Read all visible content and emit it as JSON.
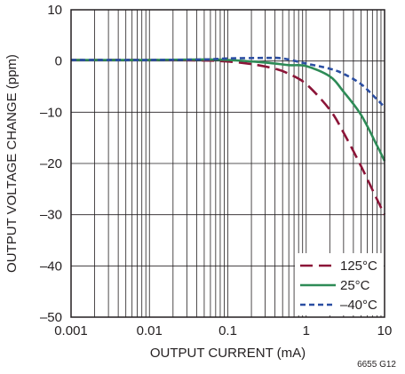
{
  "chart_data": {
    "type": "line",
    "title": "",
    "xlabel": "OUTPUT CURRENT (mA)",
    "ylabel": "OUTPUT VOLTAGE CHANGE (ppm)",
    "x_scale": "log",
    "xlim": [
      0.001,
      10
    ],
    "ylim": [
      -50,
      10
    ],
    "x_ticks": [
      0.001,
      0.01,
      0.1,
      1,
      10
    ],
    "x_tick_labels": [
      "0.001",
      "0.01",
      "0.1",
      "1",
      "10"
    ],
    "y_ticks": [
      10,
      0,
      -10,
      -20,
      -30,
      -40,
      -50
    ],
    "y_tick_labels": [
      "10",
      "0",
      "–10",
      "–20",
      "–30",
      "–40",
      "–50"
    ],
    "grid": true,
    "legend_position": "bottom-right",
    "figure_id": "6655 G12",
    "series": [
      {
        "name": "125°C",
        "color": "#8b1538",
        "dash": "long-dash",
        "x": [
          0.001,
          0.01,
          0.05,
          0.1,
          0.2,
          0.4,
          0.6,
          1,
          2,
          3,
          5,
          8,
          10
        ],
        "y": [
          0.2,
          0.2,
          0.1,
          -0.1,
          -0.6,
          -1.5,
          -2.5,
          -4.5,
          -9.5,
          -14,
          -20.5,
          -27,
          -30
        ]
      },
      {
        "name": "25°C",
        "color": "#2e8b57",
        "dash": "solid",
        "x": [
          0.001,
          0.01,
          0.05,
          0.1,
          0.3,
          0.6,
          1,
          2,
          3,
          5,
          8,
          10
        ],
        "y": [
          0.2,
          0.2,
          0.3,
          0.2,
          -0.3,
          -0.8,
          -1.0,
          -3.0,
          -6.0,
          -10.5,
          -16.5,
          -19.5
        ]
      },
      {
        "name": "–40°C",
        "color": "#2b4ea2",
        "dash": "short-dash",
        "x": [
          0.001,
          0.01,
          0.05,
          0.1,
          0.3,
          0.5,
          1,
          2,
          3,
          5,
          8,
          10
        ],
        "y": [
          0.2,
          0.2,
          0.3,
          0.5,
          0.6,
          0.5,
          -0.5,
          -1.5,
          -2.5,
          -4.5,
          -7.5,
          -9
        ]
      }
    ]
  }
}
